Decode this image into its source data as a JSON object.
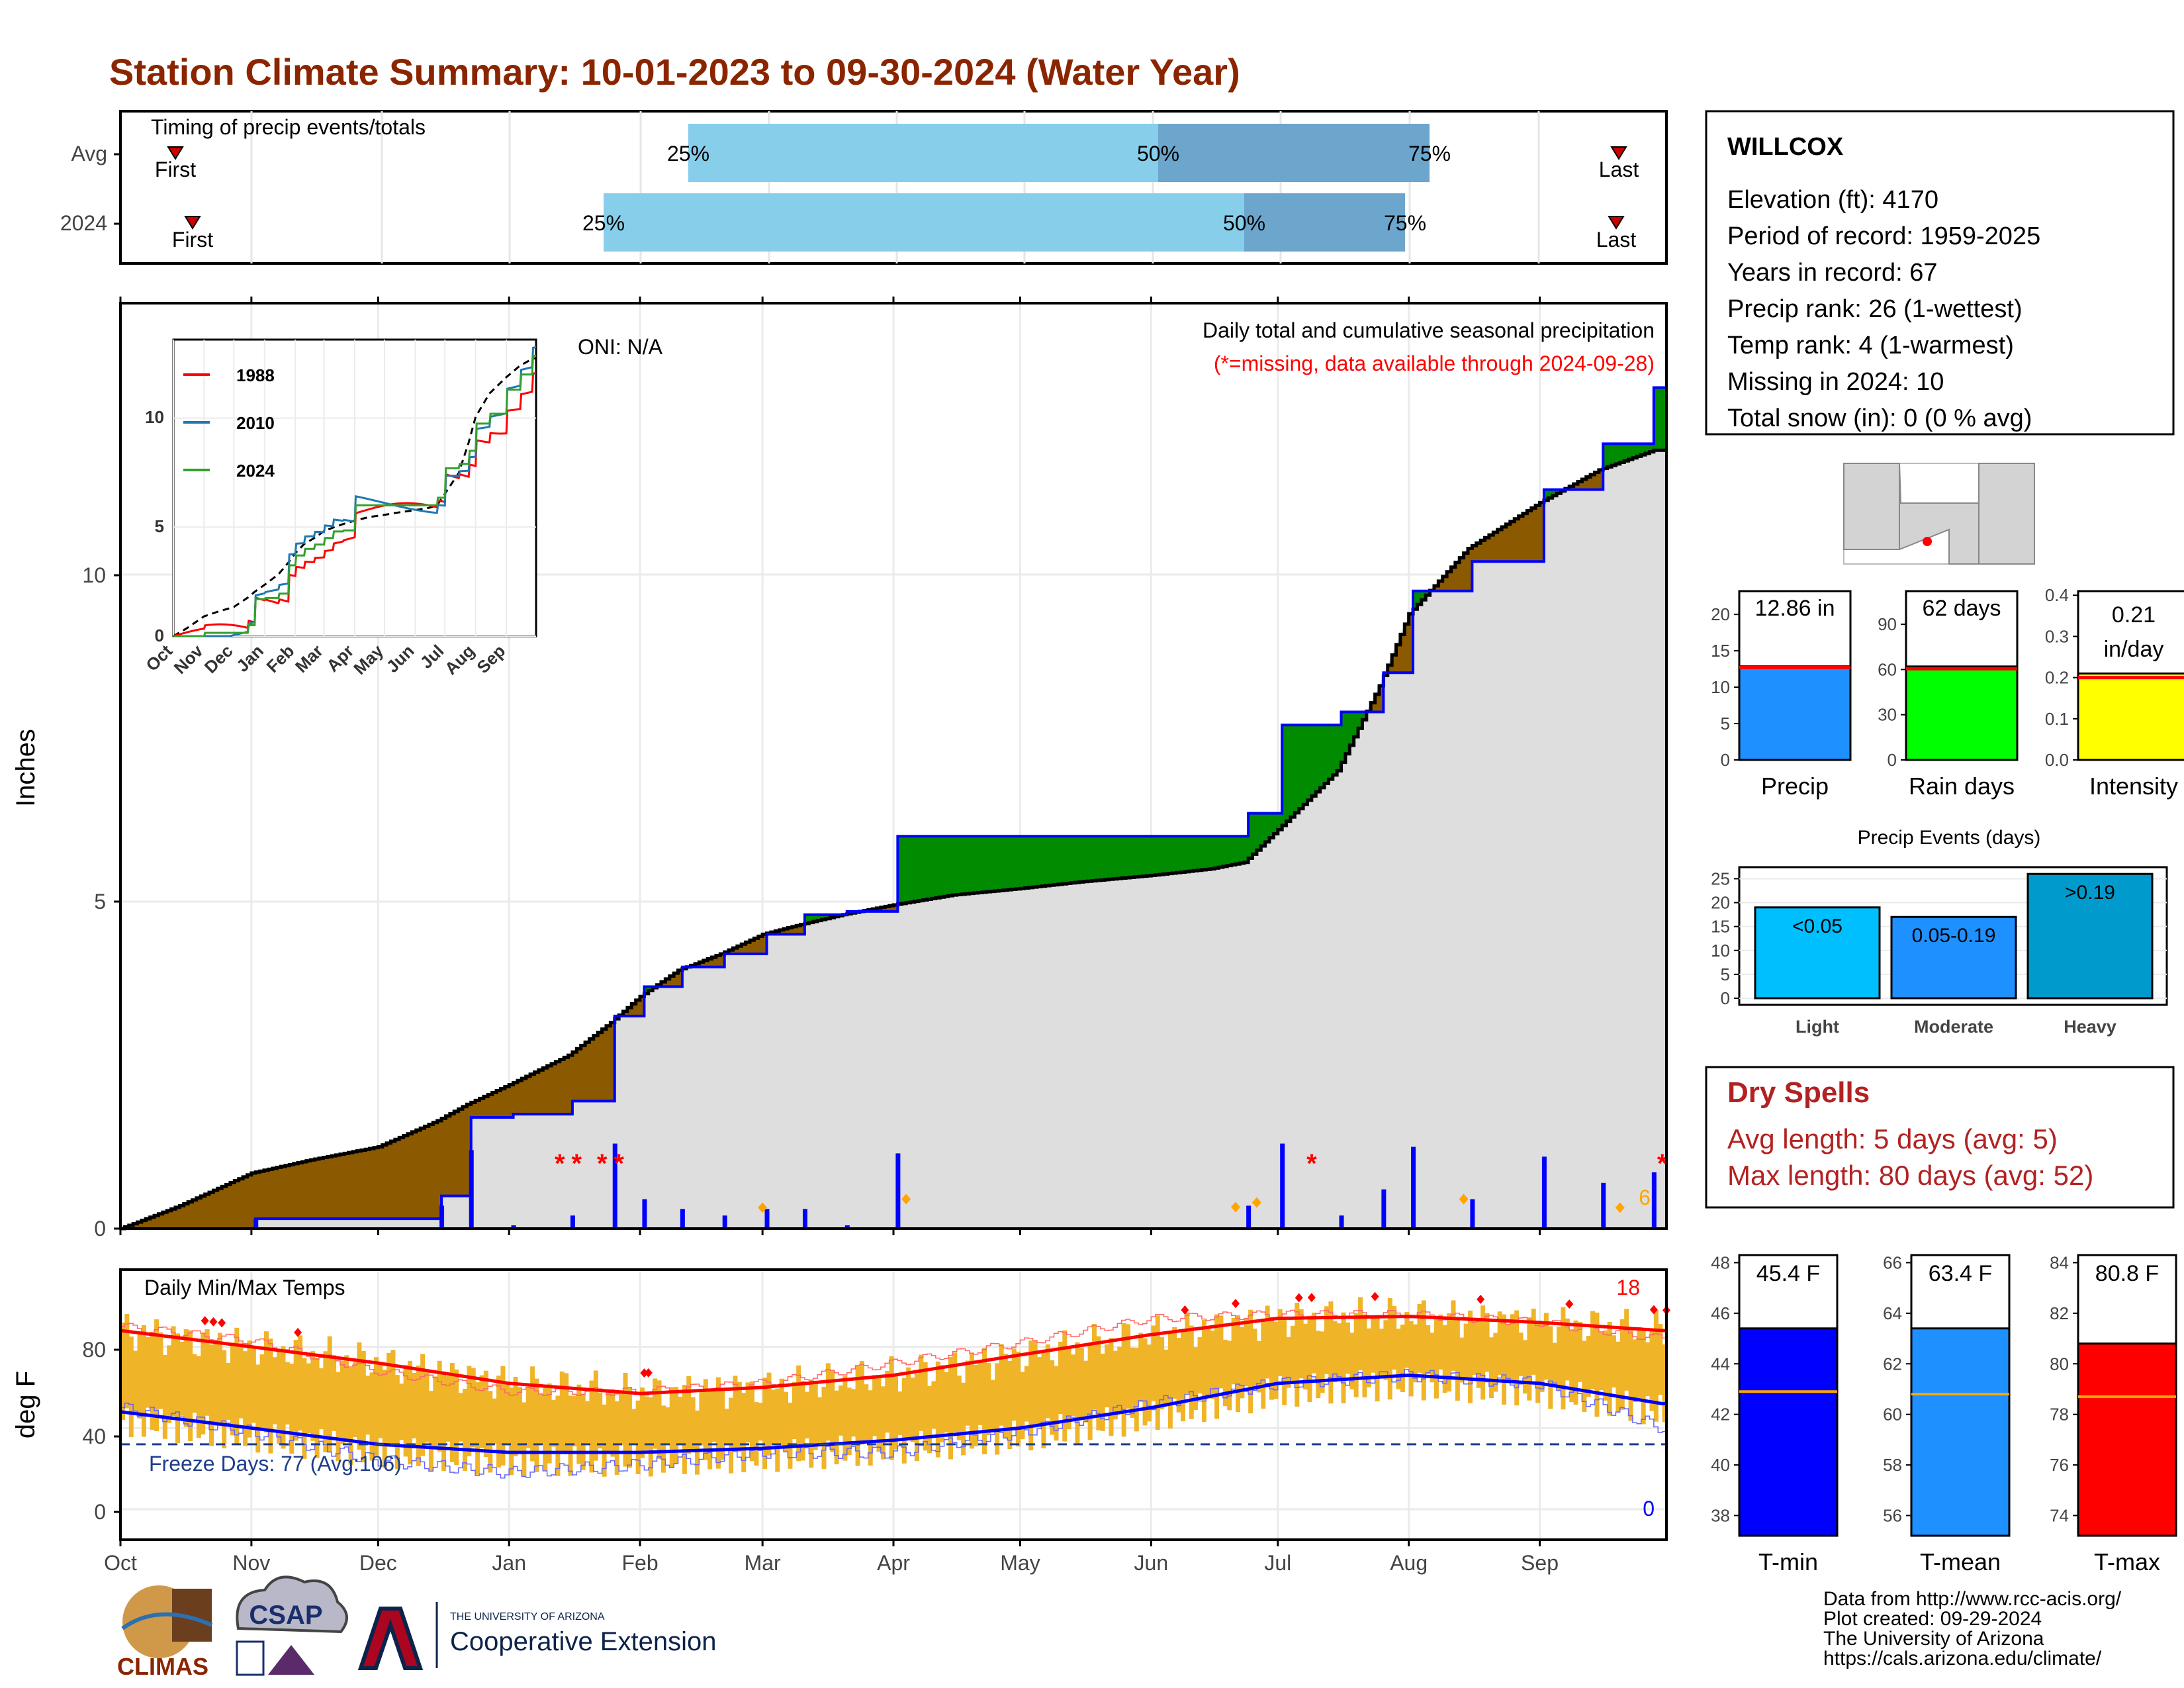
{
  "title": "Station Climate Summary: 10-01-2023 to 09-30-2024 (Water Year)",
  "colors": {
    "title": "#8B2500",
    "light_blue": "#87CEEB",
    "mid_blue": "#6CA6CD",
    "green": "#008B00",
    "brown": "#8B5A00",
    "grey": "#DEDEDE",
    "bar_blue": "#0000FF",
    "orange": "#FFA500",
    "red": "#FF0000",
    "temp_fill": "#F0B428",
    "dry_red": "#B22222"
  },
  "timing": {
    "label": "Timing of precip events/totals",
    "rows": [
      {
        "name": "Avg",
        "first": "First",
        "last": "Last",
        "p25": "25%",
        "p50": "50%",
        "p75": "75%"
      },
      {
        "name": "2024",
        "first": "First",
        "last": "Last",
        "p25": "25%",
        "p50": "50%",
        "p75": "75%"
      }
    ]
  },
  "precip_panel": {
    "ylabel": "Inches",
    "yticks": [
      "0",
      "5",
      "10"
    ],
    "oni": "ONI: N/A",
    "heading": "Daily total and cumulative seasonal precipitation",
    "missing_note": "(*=missing, data available through 2024-09-28)",
    "count_label": "6"
  },
  "inset": {
    "yticks": [
      "0",
      "5",
      "10"
    ],
    "xticks": [
      "Oct",
      "Nov",
      "Dec",
      "Jan",
      "Feb",
      "Mar",
      "Apr",
      "May",
      "Jun",
      "Jul",
      "Aug",
      "Sep"
    ],
    "legend": [
      "1988",
      "2010",
      "2024"
    ]
  },
  "temp_panel": {
    "ylabel": "deg F",
    "yticks": [
      "0",
      "40",
      "80"
    ],
    "heading": "Daily Min/Max Temps",
    "freeze": "Freeze Days: 77 (Avg:106)",
    "hot_count": "18",
    "cold_count": "0"
  },
  "months": [
    "Oct",
    "Nov",
    "Dec",
    "Jan",
    "Feb",
    "Mar",
    "Apr",
    "May",
    "Jun",
    "Jul",
    "Aug",
    "Sep"
  ],
  "station": {
    "name": "WILLCOX",
    "lines": [
      "Elevation (ft): 4170",
      "Period of record: 1959-2025",
      "Years in record: 67",
      "Precip rank: 26 (1-wettest)",
      "Temp rank: 4 (1-warmest)",
      "Missing in 2024: 10",
      "Total snow (in): 0 (0 % avg)"
    ]
  },
  "mini_bars": [
    {
      "label": "Precip",
      "value_text": "12.86 in",
      "yticks": [
        "0",
        "5",
        "10",
        "15",
        "20"
      ]
    },
    {
      "label": "Rain days",
      "value_text": "62 days",
      "yticks": [
        "0",
        "30",
        "60",
        "90"
      ]
    },
    {
      "label": "Intensity",
      "value_text": "0.21",
      "value_text2": "in/day",
      "yticks": [
        "0.0",
        "0.1",
        "0.2",
        "0.3",
        "0.4"
      ]
    }
  ],
  "events": {
    "title": "Precip Events (days)",
    "yticks": [
      "0",
      "5",
      "10",
      "15",
      "20",
      "25"
    ],
    "categories": [
      "Light",
      "Moderate",
      "Heavy"
    ],
    "bar_labels": [
      "<0.05",
      "0.05-0.19",
      ">0.19"
    ]
  },
  "dry_spells": {
    "title": "Dry Spells",
    "avg": "Avg length: 5 days (avg: 5)",
    "max": "Max length: 80 days (avg: 52)"
  },
  "temp_bars": [
    {
      "label": "T-min",
      "value_text": "45.4 F",
      "yticks": [
        "38",
        "40",
        "42",
        "44",
        "46",
        "48"
      ]
    },
    {
      "label": "T-mean",
      "value_text": "63.4 F",
      "yticks": [
        "56",
        "58",
        "60",
        "62",
        "64",
        "66"
      ]
    },
    {
      "label": "T-max",
      "value_text": "80.8 F",
      "yticks": [
        "74",
        "76",
        "78",
        "80",
        "82",
        "84"
      ]
    }
  ],
  "footer": {
    "credits": [
      "Data from http://www.rcc-acis.org/",
      "Plot created: 09-29-2024",
      "The University of Arizona",
      "https://cals.arizona.edu/climate/"
    ],
    "logo1": "CLIMAS",
    "logo2": "CSAP",
    "logo3_small": "THE UNIVERSITY OF ARIZONA",
    "logo3_big": "Cooperative Extension"
  },
  "chart_data": [
    {
      "type": "area",
      "title": "Daily total and cumulative seasonal precipitation",
      "ylabel": "Inches",
      "ylim": [
        0,
        12.9
      ],
      "x": [
        "Oct 1",
        "Oct 15",
        "Nov 1",
        "Nov 15",
        "Dec 1",
        "Dec 15",
        "Dec 22",
        "Jan 1",
        "Jan 15",
        "Jan 25",
        "Feb 1",
        "Feb 10",
        "Feb 20",
        "Mar 1",
        "Mar 10",
        "Mar 20",
        "Apr 1",
        "Apr 15",
        "May 1",
        "May 15",
        "Jun 1",
        "Jun 15",
        "Jun 23",
        "Jul 1",
        "Jul 15",
        "Jul 25",
        "Aug 1",
        "Aug 15",
        "Sep 1",
        "Sep 15",
        "Sep 28"
      ],
      "series": [
        {
          "name": "2024",
          "values": [
            0,
            0,
            0.15,
            0.15,
            0.15,
            0.5,
            1.7,
            1.75,
            1.95,
            3.25,
            3.7,
            4.0,
            4.2,
            4.5,
            4.8,
            4.85,
            6.0,
            6.0,
            6.0,
            6.0,
            6.0,
            6.0,
            6.35,
            7.7,
            7.9,
            8.5,
            9.75,
            10.2,
            11.3,
            12.0,
            12.86
          ]
        },
        {
          "values": [
            0,
            0.35,
            0.85,
            1.05,
            1.25,
            1.65,
            1.9,
            2.2,
            2.65,
            3.15,
            3.55,
            3.95,
            4.2,
            4.5,
            4.65,
            4.8,
            4.95,
            5.1,
            5.2,
            5.3,
            5.4,
            5.5,
            5.6,
            6.1,
            7.0,
            8.3,
            9.4,
            10.4,
            11.1,
            11.6,
            11.9
          ]
        }
      ]
    },
    {
      "type": "line",
      "title": "Daily Min/Max Temps",
      "ylabel": "deg F",
      "ylim": [
        -5,
        105
      ],
      "x": [
        "Oct 1",
        "Nov 1",
        "Dec 1",
        "Jan 1",
        "Feb 1",
        "Mar 1",
        "Apr 1",
        "May 1",
        "Jun 1",
        "Jul 1",
        "Aug 1",
        "Sep 1",
        "Sep 30"
      ],
      "series": [
        {
          "values": [
            88,
            80,
            72,
            62,
            57,
            60,
            66,
            76,
            86,
            94,
            95,
            92,
            88
          ]
        },
        {
          "values": [
            48,
            40,
            32,
            28,
            28,
            30,
            34,
            40,
            50,
            62,
            66,
            62,
            52
          ]
        },
        {
          "values": [
            90,
            83,
            68,
            58,
            58,
            62,
            72,
            82,
            94,
            96,
            96,
            92,
            84
          ]
        },
        {
          "values": [
            50,
            38,
            24,
            18,
            22,
            28,
            28,
            38,
            52,
            62,
            66,
            62,
            40
          ]
        }
      ]
    },
    {
      "type": "bar",
      "title": "Precip Events (days)",
      "categories": [
        "Light",
        "Moderate",
        "Heavy"
      ],
      "values": [
        19,
        17,
        26
      ],
      "ylim": [
        0,
        27
      ]
    },
    {
      "type": "bar",
      "categories": [
        "Precip",
        "Rain days",
        "Intensity"
      ],
      "values": [
        12.86,
        62,
        0.21
      ]
    },
    {
      "type": "bar",
      "categories": [
        "T-min",
        "T-mean",
        "T-max"
      ],
      "values": [
        45.4,
        63.4,
        80.8
      ]
    }
  ]
}
